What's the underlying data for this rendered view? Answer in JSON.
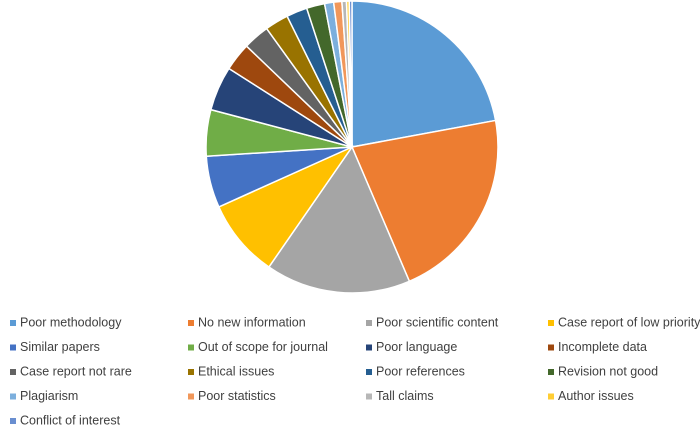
{
  "chart_data": {
    "type": "pie",
    "categories": [
      "Poor methodology",
      "No new information",
      "Poor scientific content",
      "Case report of low priority",
      "Similar papers",
      "Out of scope for journal",
      "Poor language",
      "Incomplete data",
      "Case report not rare",
      "Ethical issues",
      "Poor references",
      "Revision not good",
      "Plagiarism",
      "Poor statistics",
      "Tall claims",
      "Author issues",
      "Conflict of interest"
    ],
    "values": [
      22,
      21.4,
      16,
      8.6,
      5.7,
      5.1,
      4.9,
      3.1,
      2.9,
      2.6,
      2.3,
      2,
      1,
      0.9,
      0.5,
      0.3,
      0.3
    ],
    "colors": [
      "#5b9bd5",
      "#ed7d31",
      "#a5a5a5",
      "#ffc000",
      "#4472c4",
      "#70ad47",
      "#264478",
      "#9e480e",
      "#636363",
      "#997300",
      "#255e91",
      "#43682b",
      "#7cafdd",
      "#f1975a",
      "#b7b7b7",
      "#ffcd33",
      "#698ed0"
    ],
    "legend": "bottom"
  }
}
